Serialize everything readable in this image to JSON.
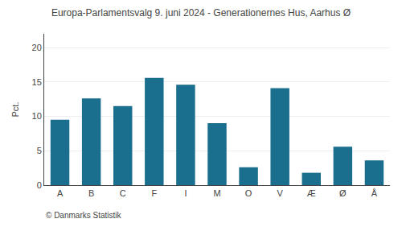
{
  "chart_data": {
    "type": "bar",
    "title": "Europa-Parlamentsvalg 9. juni 2024 - Generationernes Hus, Aarhus Ø",
    "categories": [
      "A",
      "B",
      "C",
      "F",
      "I",
      "M",
      "O",
      "V",
      "Æ",
      "Ø",
      "Å"
    ],
    "values": [
      9.5,
      12.6,
      11.5,
      15.6,
      14.6,
      9.0,
      2.6,
      14.1,
      1.8,
      5.6,
      3.6
    ],
    "color": "#1a6e8e",
    "ylabel": "Pct.",
    "ylim": [
      0,
      22
    ],
    "yticks": [
      0,
      5,
      10,
      15,
      20
    ],
    "grid": true,
    "annotations": [
      "© Danmarks Statistik"
    ]
  }
}
